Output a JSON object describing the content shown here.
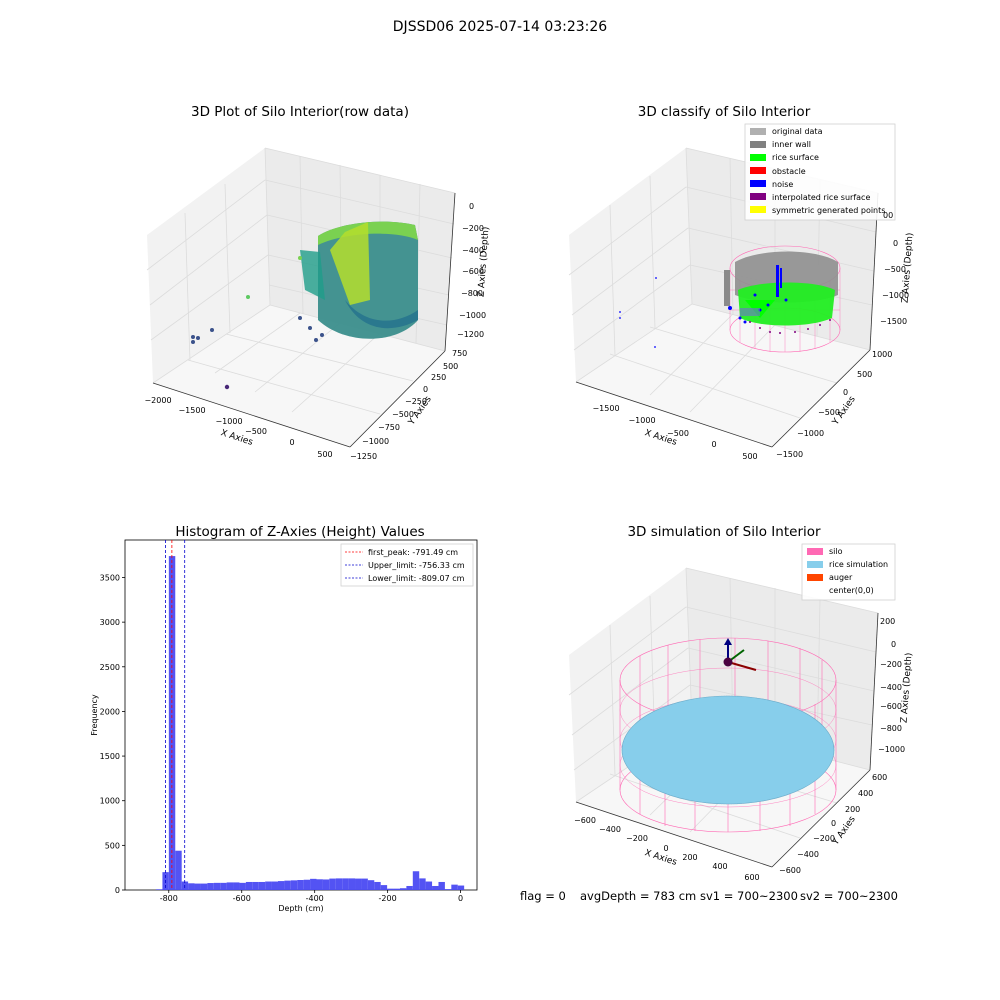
{
  "figure": {
    "suptitle": "DJSSD06 2025-07-14 03:23:26",
    "footer": {
      "flag": "flag = 0",
      "avg_depth": "avgDepth = 783 cm",
      "sv1": "sv1 = 700~2300",
      "sv2": "sv2 = 700~2300"
    }
  },
  "chart_data": [
    {
      "id": "raw",
      "type": "scatter",
      "projection": "3d",
      "title": "3D Plot of Silo Interior(row data)",
      "xlabel": "X Axies",
      "ylabel": "Y Axies",
      "zlabel": "Z Axies (Depth)",
      "x_ticks": [
        "−2000",
        "−1500",
        "−1000",
        "−500",
        "0",
        "500"
      ],
      "y_ticks": [
        "750",
        "500",
        "250",
        "0",
        "−250",
        "−500",
        "−750",
        "−1000",
        "−1250"
      ],
      "z_ticks": [
        "0",
        "−200",
        "−400",
        "−600",
        "−800",
        "−1000",
        "−1200"
      ],
      "colormap": "viridis",
      "colors": {
        "low": "#3b528b",
        "mid": "#21918c",
        "high": "#fde725"
      }
    },
    {
      "id": "classify",
      "type": "scatter",
      "projection": "3d",
      "title": "3D classify of Silo Interior",
      "xlabel": "X Axies",
      "ylabel": "Y Axies",
      "zlabel": "Z Axies (Depth)",
      "x_ticks": [
        "−1500",
        "−1000",
        "−500",
        "0",
        "500"
      ],
      "y_ticks": [
        "1000",
        "500",
        "0",
        "−500",
        "−1000",
        "−1500"
      ],
      "z_ticks": [
        "0",
        "−500",
        "−1000",
        "−1500"
      ],
      "z_tick_partial": "00",
      "legend_position": "top-right",
      "legend": [
        {
          "label": "original data",
          "color": "#b0b0b0"
        },
        {
          "label": "inner wall",
          "color": "#808080"
        },
        {
          "label": "rice surface",
          "color": "#00ff00"
        },
        {
          "label": "obstacle",
          "color": "#ff0000"
        },
        {
          "label": "noise",
          "color": "#0000ff"
        },
        {
          "label": "interpolated rice surface",
          "color": "#800080"
        },
        {
          "label": "symmetric generated points",
          "color": "#ffff00"
        }
      ]
    },
    {
      "id": "hist",
      "type": "bar",
      "title": "Histogram of Z-Axies (Height) Values",
      "xlabel": "Depth (cm)",
      "ylabel": "Frequency",
      "xlim": [
        -920,
        45
      ],
      "ylim": [
        0,
        3920
      ],
      "x_ticks": [
        -800,
        -600,
        -400,
        -200,
        0
      ],
      "y_ticks": [
        0,
        500,
        1000,
        1500,
        2000,
        2500,
        3000,
        3500
      ],
      "bar_color": "#4a4af2",
      "bin_width": 17.6,
      "bins": [
        {
          "x": -835,
          "value": 8
        },
        {
          "x": -817.4,
          "value": 200
        },
        {
          "x": -799.8,
          "value": 3740
        },
        {
          "x": -782.2,
          "value": 440
        },
        {
          "x": -764.6,
          "value": 95
        },
        {
          "x": -747,
          "value": 75
        },
        {
          "x": -729.4,
          "value": 72
        },
        {
          "x": -711.8,
          "value": 72
        },
        {
          "x": -694.2,
          "value": 78
        },
        {
          "x": -676.6,
          "value": 80
        },
        {
          "x": -659,
          "value": 80
        },
        {
          "x": -641.4,
          "value": 85
        },
        {
          "x": -623.8,
          "value": 85
        },
        {
          "x": -606.2,
          "value": 80
        },
        {
          "x": -588.6,
          "value": 90
        },
        {
          "x": -571,
          "value": 90
        },
        {
          "x": -553.4,
          "value": 90
        },
        {
          "x": -535.8,
          "value": 95
        },
        {
          "x": -518.2,
          "value": 95
        },
        {
          "x": -500.6,
          "value": 100
        },
        {
          "x": -483,
          "value": 105
        },
        {
          "x": -465.4,
          "value": 108
        },
        {
          "x": -447.8,
          "value": 112
        },
        {
          "x": -430.2,
          "value": 115
        },
        {
          "x": -412.6,
          "value": 125
        },
        {
          "x": -395,
          "value": 120
        },
        {
          "x": -377.4,
          "value": 118
        },
        {
          "x": -359.8,
          "value": 128
        },
        {
          "x": -342.2,
          "value": 130
        },
        {
          "x": -324.6,
          "value": 130
        },
        {
          "x": -307,
          "value": 130
        },
        {
          "x": -289.4,
          "value": 128
        },
        {
          "x": -271.8,
          "value": 128
        },
        {
          "x": -254.2,
          "value": 110
        },
        {
          "x": -236.6,
          "value": 90
        },
        {
          "x": -219,
          "value": 55
        },
        {
          "x": -201.4,
          "value": 15
        },
        {
          "x": -183.8,
          "value": 15
        },
        {
          "x": -166.2,
          "value": 20
        },
        {
          "x": -148.6,
          "value": 45
        },
        {
          "x": -131,
          "value": 210
        },
        {
          "x": -113.4,
          "value": 130
        },
        {
          "x": -95.8,
          "value": 95
        },
        {
          "x": -78.2,
          "value": 45
        },
        {
          "x": -60.6,
          "value": 90
        },
        {
          "x": -43,
          "value": 10
        },
        {
          "x": -25.4,
          "value": 60
        },
        {
          "x": -7.8,
          "value": 50
        }
      ],
      "lines": [
        {
          "label": "first_peak: -791.49 cm",
          "x": -791.49,
          "color": "#ff0000"
        },
        {
          "label": "Upper_limit: -756.33 cm",
          "x": -756.33,
          "color": "#0000cc"
        },
        {
          "label": "Lower_limit: -809.07 cm",
          "x": -809.07,
          "color": "#0000cc"
        }
      ],
      "legend_position": "top-right"
    },
    {
      "id": "sim",
      "type": "scatter",
      "projection": "3d",
      "title": "3D simulation of Silo Interior",
      "xlabel": "X Axies",
      "ylabel": "Y Axies",
      "zlabel": "Z Axies (Depth)",
      "x_ticks": [
        "−600",
        "−400",
        "−200",
        "0",
        "200",
        "400",
        "600"
      ],
      "y_ticks": [
        "600",
        "400",
        "200",
        "0",
        "−200",
        "−400",
        "−600"
      ],
      "z_ticks": [
        "200",
        "0",
        "−200",
        "−400",
        "−600",
        "−800",
        "−1000"
      ],
      "legend_position": "top-right",
      "legend": [
        {
          "label": "silo",
          "color": "#ff69b4"
        },
        {
          "label": "rice simulation",
          "color": "#87ceeb"
        },
        {
          "label": "auger",
          "color": "#ff4500"
        },
        {
          "label": "center(0,0)",
          "color": ""
        }
      ]
    }
  ]
}
